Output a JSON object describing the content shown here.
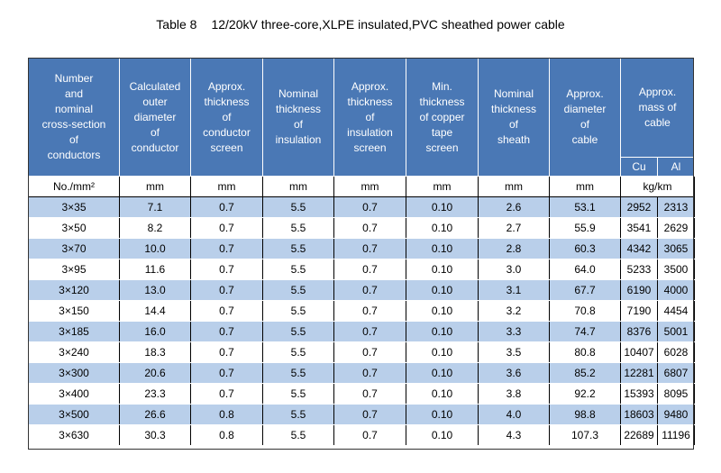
{
  "title": {
    "number": "Table 8",
    "text": "12/20kV three-core,XLPE insulated,PVC sheathed power cable"
  },
  "headers": [
    [
      "Number",
      "and",
      "nominal",
      "cross-section",
      "of",
      "conductors"
    ],
    [
      "Calculated",
      "outer",
      "diameter",
      "of",
      "conductor"
    ],
    [
      "Approx.",
      "thickness",
      "of",
      "conductor",
      "screen"
    ],
    [
      "Nominal",
      "thickness",
      "of",
      "insulation"
    ],
    [
      "Approx.",
      "thickness",
      "of",
      "insulation",
      "screen"
    ],
    [
      "Min.",
      "thickness",
      "of copper",
      "tape",
      "screen"
    ],
    [
      "Nominal",
      "thickness",
      "of",
      "sheath"
    ],
    [
      "Approx.",
      "diameter",
      "of",
      "cable"
    ]
  ],
  "mass_header": [
    "Approx.",
    "mass of",
    "cable"
  ],
  "mass_sub": [
    "Cu",
    "Al"
  ],
  "units": [
    "No./mm²",
    "mm",
    "mm",
    "mm",
    "mm",
    "mm",
    "mm",
    "mm",
    "kg/km"
  ],
  "rows": [
    [
      "3×35",
      "7.1",
      "0.7",
      "5.5",
      "0.7",
      "0.10",
      "2.6",
      "53.1",
      "2952",
      "2313"
    ],
    [
      "3×50",
      "8.2",
      "0.7",
      "5.5",
      "0.7",
      "0.10",
      "2.7",
      "55.9",
      "3541",
      "2629"
    ],
    [
      "3×70",
      "10.0",
      "0.7",
      "5.5",
      "0.7",
      "0.10",
      "2.8",
      "60.3",
      "4342",
      "3065"
    ],
    [
      "3×95",
      "11.6",
      "0.7",
      "5.5",
      "0.7",
      "0.10",
      "3.0",
      "64.0",
      "5233",
      "3500"
    ],
    [
      "3×120",
      "13.0",
      "0.7",
      "5.5",
      "0.7",
      "0.10",
      "3.1",
      "67.7",
      "6190",
      "4000"
    ],
    [
      "3×150",
      "14.4",
      "0.7",
      "5.5",
      "0.7",
      "0.10",
      "3.2",
      "70.8",
      "7190",
      "4454"
    ],
    [
      "3×185",
      "16.0",
      "0.7",
      "5.5",
      "0.7",
      "0.10",
      "3.3",
      "74.7",
      "8376",
      "5001"
    ],
    [
      "3×240",
      "18.3",
      "0.7",
      "5.5",
      "0.7",
      "0.10",
      "3.5",
      "80.8",
      "10407",
      "6028"
    ],
    [
      "3×300",
      "20.6",
      "0.7",
      "5.5",
      "0.7",
      "0.10",
      "3.6",
      "85.2",
      "12281",
      "6807"
    ],
    [
      "3×400",
      "23.3",
      "0.7",
      "5.5",
      "0.7",
      "0.10",
      "3.8",
      "92.2",
      "15393",
      "8095"
    ],
    [
      "3×500",
      "26.6",
      "0.8",
      "5.5",
      "0.7",
      "0.10",
      "4.0",
      "98.8",
      "18603",
      "9480"
    ],
    [
      "3×630",
      "30.3",
      "0.8",
      "5.5",
      "0.7",
      "0.10",
      "4.3",
      "107.3",
      "22689",
      "11196"
    ]
  ],
  "colors": {
    "header_bg": "#4a78b5",
    "stripe_bg": "#b9cfea",
    "header_text": "#ffffff"
  }
}
